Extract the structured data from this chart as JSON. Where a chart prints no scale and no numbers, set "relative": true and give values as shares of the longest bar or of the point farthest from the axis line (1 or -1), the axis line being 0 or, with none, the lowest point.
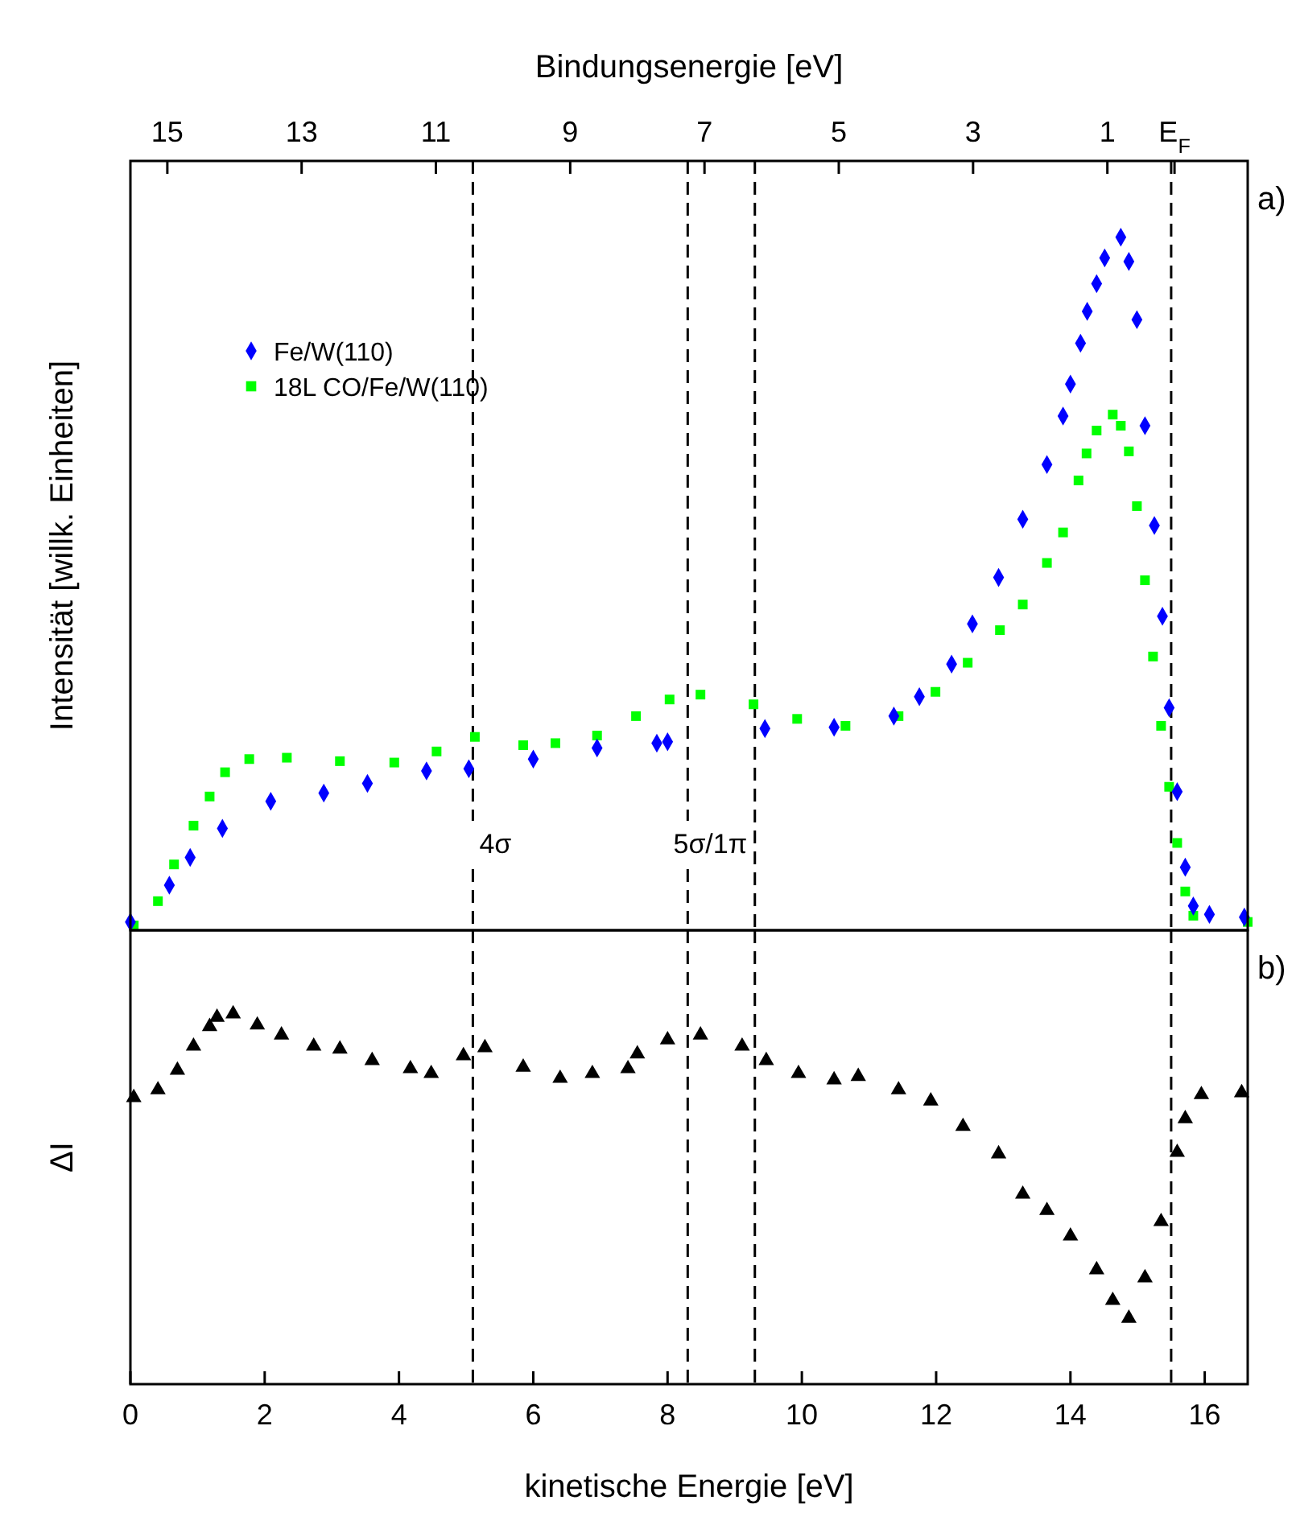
{
  "chart_data": [
    {
      "type": "scatter",
      "relative": true,
      "x2label": "Bindungsenergie [eV]",
      "ylabel": "Intensität [willk. Einheiten]",
      "xlim": [
        0,
        16.64
      ],
      "x2lim": [
        15.55,
        -1.09
      ],
      "x2ticks": [
        15,
        13,
        11,
        9,
        7,
        5,
        3,
        1,
        {
          "value": 0,
          "label": "E$_{F}$"
        }
      ],
      "tick_labels": false,
      "legend": "top left",
      "annotations": [
        "a)"
      ],
      "ref_lines": [
        {
          "axis": "x",
          "value": 5.1,
          "label": "4σ",
          "line_style": "dashed",
          "color": "#000000"
        },
        {
          "axis": "x",
          "value": 8.3,
          "label": "5σ/1π",
          "line_style": "dashed",
          "color": "#000000"
        },
        {
          "axis": "x",
          "value": 9.3,
          "label": null,
          "line_style": "dashed",
          "color": "#000000"
        },
        {
          "axis": "x",
          "value": 15.5,
          "label": null,
          "line_style": "dashed",
          "color": "#000000"
        }
      ],
      "series": [
        {
          "name": "Fe/W(110)",
          "color": "#0000ff",
          "marker": "diamond",
          "x": [
            0,
            0.58,
            0.89,
            1.37,
            2.09,
            2.88,
            3.53,
            4.41,
            5.04,
            6.0,
            6.95,
            7.84,
            8.0,
            9.45,
            10.48,
            11.37,
            11.75,
            12.23,
            12.54,
            12.93,
            13.29,
            13.65,
            13.89,
            14.0,
            14.15,
            14.25,
            14.39,
            14.51,
            14.75,
            14.87,
            14.99,
            15.11,
            15.25,
            15.37,
            15.47,
            15.59,
            15.71,
            15.83,
            16.07,
            16.59
          ],
          "values": [
            0.012,
            0.065,
            0.105,
            0.147,
            0.186,
            0.198,
            0.212,
            0.23,
            0.233,
            0.247,
            0.263,
            0.27,
            0.272,
            0.291,
            0.293,
            0.309,
            0.337,
            0.384,
            0.442,
            0.509,
            0.593,
            0.672,
            0.742,
            0.788,
            0.847,
            0.893,
            0.933,
            0.97,
            1.0,
            0.965,
            0.881,
            0.728,
            0.584,
            0.453,
            0.321,
            0.2,
            0.091,
            0.035,
            0.023,
            0.019
          ]
        },
        {
          "name": "18L CO/Fe/W(110)",
          "color": "#00ff00",
          "marker": "square",
          "x": [
            0.05,
            0.41,
            0.65,
            0.94,
            1.18,
            1.41,
            1.77,
            2.33,
            3.12,
            3.93,
            4.56,
            5.13,
            5.85,
            6.33,
            6.95,
            7.53,
            8.03,
            8.49,
            9.28,
            9.93,
            10.65,
            11.44,
            11.99,
            12.47,
            12.95,
            13.29,
            13.65,
            13.89,
            14.12,
            14.24,
            14.39,
            14.63,
            14.75,
            14.87,
            14.99,
            15.11,
            15.23,
            15.35,
            15.47,
            15.59,
            15.71,
            15.83,
            16.64
          ],
          "values": [
            0.007,
            0.042,
            0.095,
            0.151,
            0.193,
            0.228,
            0.247,
            0.249,
            0.244,
            0.242,
            0.258,
            0.279,
            0.267,
            0.27,
            0.281,
            0.309,
            0.333,
            0.34,
            0.326,
            0.305,
            0.295,
            0.309,
            0.344,
            0.386,
            0.433,
            0.47,
            0.53,
            0.574,
            0.649,
            0.688,
            0.721,
            0.744,
            0.728,
            0.691,
            0.612,
            0.505,
            0.395,
            0.295,
            0.207,
            0.126,
            0.056,
            0.021,
            0.012
          ]
        }
      ]
    },
    {
      "type": "scatter",
      "relative": true,
      "xlabel": "kinetische Energie [eV]",
      "ylabel": "ΔI",
      "xlim": [
        0,
        16.64
      ],
      "xticks": [
        0,
        2,
        4,
        6,
        8,
        10,
        12,
        14,
        16
      ],
      "tick_labels": "x",
      "annotations": [
        "b)"
      ],
      "ref_lines": [
        {
          "axis": "x",
          "value": 5.1,
          "line_style": "dashed",
          "color": "#000000"
        },
        {
          "axis": "x",
          "value": 8.3,
          "line_style": "dashed",
          "color": "#000000"
        },
        {
          "axis": "x",
          "value": 9.3,
          "line_style": "dashed",
          "color": "#000000"
        },
        {
          "axis": "x",
          "value": 15.5,
          "line_style": "dashed",
          "color": "#000000"
        }
      ],
      "series": [
        {
          "color": "#000000",
          "marker": "triangle",
          "x": [
            0.05,
            0.41,
            0.7,
            0.94,
            1.18,
            1.29,
            1.53,
            1.89,
            2.25,
            2.73,
            3.12,
            3.6,
            4.17,
            4.48,
            4.96,
            5.28,
            5.85,
            6.4,
            6.88,
            7.41,
            7.55,
            8.0,
            8.49,
            9.11,
            9.47,
            9.95,
            10.48,
            10.84,
            11.44,
            11.92,
            12.4,
            12.93,
            13.29,
            13.65,
            14.0,
            14.39,
            14.63,
            14.87,
            15.11,
            15.35,
            15.59,
            15.71,
            15.95,
            16.55
          ],
          "values": [
            0.774,
            0.795,
            0.848,
            0.913,
            0.966,
            0.991,
            1.0,
            0.97,
            0.943,
            0.913,
            0.905,
            0.874,
            0.852,
            0.839,
            0.887,
            0.909,
            0.856,
            0.826,
            0.839,
            0.852,
            0.892,
            0.93,
            0.943,
            0.913,
            0.874,
            0.839,
            0.822,
            0.831,
            0.795,
            0.765,
            0.696,
            0.622,
            0.513,
            0.469,
            0.4,
            0.309,
            0.226,
            0.178,
            0.287,
            0.439,
            0.626,
            0.717,
            0.782,
            0.787
          ]
        }
      ]
    }
  ]
}
